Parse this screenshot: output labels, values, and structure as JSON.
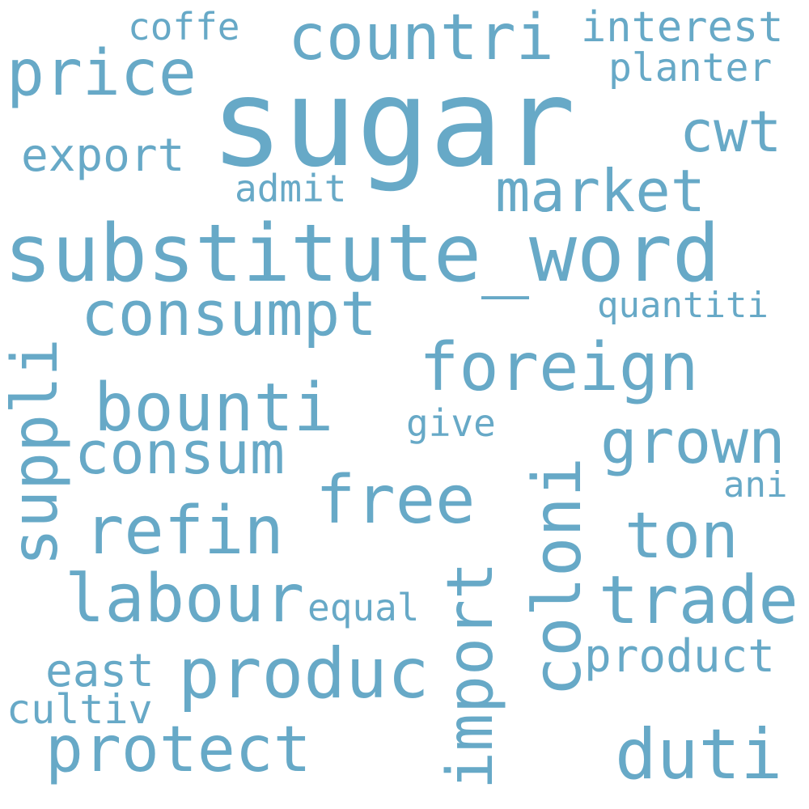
{
  "cloud": {
    "text_color": "#67a9c7",
    "background": "#ffffff",
    "words": [
      {
        "id": "sugar",
        "text": "sugar"
      },
      {
        "id": "substitute_word",
        "text": "substitute_word"
      },
      {
        "id": "countri",
        "text": "countri"
      },
      {
        "id": "price",
        "text": "price"
      },
      {
        "id": "coffe",
        "text": "coffe"
      },
      {
        "id": "interest",
        "text": "interest"
      },
      {
        "id": "planter",
        "text": "planter"
      },
      {
        "id": "export",
        "text": "export"
      },
      {
        "id": "cwt",
        "text": "cwt"
      },
      {
        "id": "admit",
        "text": "admit"
      },
      {
        "id": "market",
        "text": "market"
      },
      {
        "id": "quantiti",
        "text": "quantiti"
      },
      {
        "id": "consumpt",
        "text": "consumpt"
      },
      {
        "id": "foreign",
        "text": "foreign"
      },
      {
        "id": "bounti",
        "text": "bounti"
      },
      {
        "id": "give",
        "text": "give"
      },
      {
        "id": "grown",
        "text": "grown"
      },
      {
        "id": "consum",
        "text": "consum"
      },
      {
        "id": "free",
        "text": "free"
      },
      {
        "id": "ani",
        "text": "ani"
      },
      {
        "id": "refin",
        "text": "refin"
      },
      {
        "id": "ton",
        "text": "ton"
      },
      {
        "id": "labour",
        "text": "labour"
      },
      {
        "id": "equal",
        "text": "equal"
      },
      {
        "id": "trade",
        "text": "trade"
      },
      {
        "id": "east",
        "text": "east"
      },
      {
        "id": "produc",
        "text": "produc"
      },
      {
        "id": "product",
        "text": "product"
      },
      {
        "id": "cultiv",
        "text": "cultiv"
      },
      {
        "id": "protect",
        "text": "protect"
      },
      {
        "id": "duti",
        "text": "duti"
      },
      {
        "id": "suppli",
        "text": "suppli",
        "orientation": "vertical"
      },
      {
        "id": "import",
        "text": "import",
        "orientation": "vertical"
      },
      {
        "id": "coloni",
        "text": "coloni",
        "orientation": "vertical"
      }
    ]
  }
}
